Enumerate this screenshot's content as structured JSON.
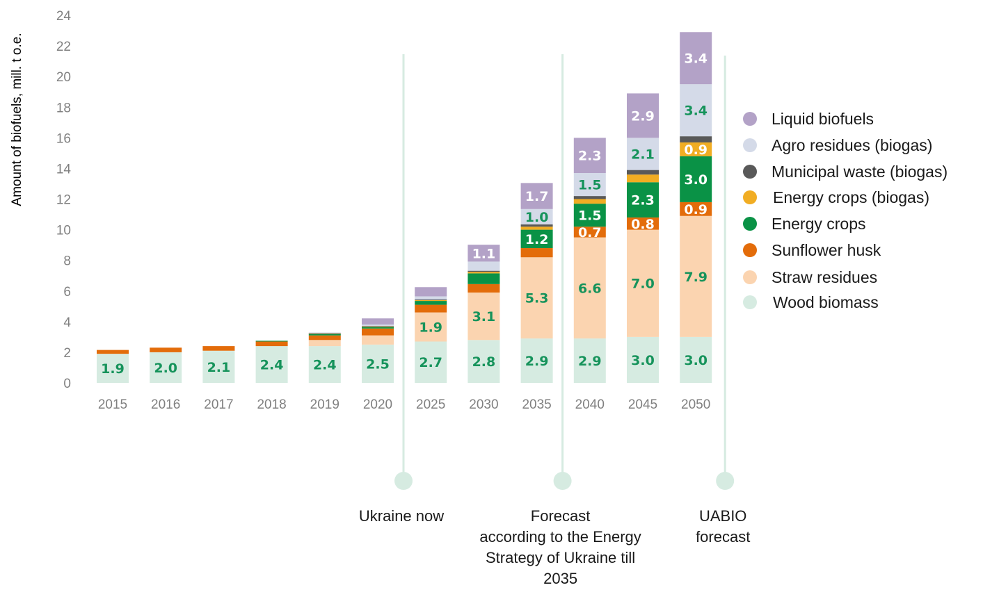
{
  "chart_data": {
    "type": "bar",
    "stacked": true,
    "ylabel": "Amount of biofuels, mill. t o.e.",
    "ylim": [
      0,
      24
    ],
    "yticks": [
      0,
      2,
      4,
      6,
      8,
      10,
      12,
      14,
      16,
      18,
      20,
      22,
      24
    ],
    "categories": [
      "2015",
      "2016",
      "2017",
      "2018",
      "2019",
      "2020",
      "2025",
      "2030",
      "2035",
      "2040",
      "2045",
      "2050"
    ],
    "series": [
      {
        "name": "Wood biomass",
        "color": "#d6ebe1",
        "label_color": "#16935b",
        "values": [
          1.9,
          2.0,
          2.1,
          2.4,
          2.4,
          2.5,
          2.7,
          2.8,
          2.9,
          2.9,
          3.0,
          3.0
        ],
        "labels": [
          "1.9",
          "2.0",
          "2.1",
          "2.4",
          "2.4",
          "2.5",
          "2.7",
          "2.8",
          "2.9",
          "2.9",
          "3.0",
          "3.0"
        ]
      },
      {
        "name": "Straw residues",
        "color": "#fbd4b0",
        "label_color": "#16935b",
        "values": [
          0,
          0,
          0,
          0,
          0.4,
          0.6,
          1.9,
          3.1,
          5.3,
          6.6,
          7.0,
          7.9
        ],
        "labels": [
          "",
          "",
          "",
          "",
          "",
          "",
          "1.9",
          "3.1",
          "5.3",
          "6.6",
          "7.0",
          "7.9"
        ]
      },
      {
        "name": "Sunflower husk",
        "color": "#e36c0a",
        "label_color": "#ffffff",
        "values": [
          0.25,
          0.3,
          0.3,
          0.3,
          0.3,
          0.45,
          0.5,
          0.55,
          0.6,
          0.7,
          0.8,
          0.9
        ],
        "labels": [
          "",
          "",
          "",
          "",
          "",
          "",
          "",
          "",
          "",
          "0.7",
          "0.8",
          "0.9"
        ]
      },
      {
        "name": "Energy crops",
        "color": "#0a9246",
        "label_color": "#ffffff",
        "values": [
          0,
          0,
          0,
          0.05,
          0.1,
          0.1,
          0.25,
          0.7,
          1.2,
          1.5,
          2.3,
          3.0
        ],
        "labels": [
          "",
          "",
          "",
          "",
          "",
          "",
          "",
          "",
          "1.2",
          "1.5",
          "2.3",
          "3.0"
        ]
      },
      {
        "name": "Energy crops (biogas)",
        "color": "#f1ad23",
        "label_color": "#ffffff",
        "values": [
          0,
          0,
          0,
          0,
          0.02,
          0.03,
          0.05,
          0.1,
          0.2,
          0.3,
          0.5,
          0.9
        ],
        "labels": [
          "",
          "",
          "",
          "",
          "",
          "",
          "",
          "",
          "",
          "",
          "",
          "0.9"
        ]
      },
      {
        "name": "Municipal waste (biogas)",
        "color": "#595959",
        "label_color": "#ffffff",
        "values": [
          0,
          0,
          0,
          0,
          0.02,
          0.03,
          0.05,
          0.07,
          0.15,
          0.2,
          0.3,
          0.4
        ],
        "labels": [
          "",
          "",
          "",
          "",
          "",
          "",
          "",
          "",
          "",
          "",
          "",
          ""
        ]
      },
      {
        "name": "Agro residues (biogas)",
        "color": "#d4dae8",
        "label_color": "#16935b",
        "values": [
          0,
          0,
          0,
          0,
          0.05,
          0.1,
          0.2,
          0.6,
          1.0,
          1.5,
          2.1,
          3.4
        ],
        "labels": [
          "",
          "",
          "",
          "",
          "",
          "",
          "",
          "",
          "1.0",
          "1.5",
          "2.1",
          "3.4"
        ]
      },
      {
        "name": "Liquid biofuels",
        "color": "#b3a2c7",
        "label_color": "#ffffff",
        "values": [
          0,
          0,
          0,
          0,
          0,
          0.4,
          0.6,
          1.1,
          1.7,
          2.3,
          2.9,
          3.4
        ],
        "labels": [
          "",
          "",
          "",
          "",
          "",
          "",
          "",
          "1.1",
          "1.7",
          "2.3",
          "2.9",
          "3.4"
        ]
      }
    ],
    "legend": {
      "placement": "right",
      "order": [
        "Liquid biofuels",
        "Agro residues (biogas)",
        "Municipal waste (biogas)",
        "Energy crops (biogas)",
        "Energy crops",
        "Sunflower husk",
        "Straw residues",
        "Wood biomass"
      ]
    },
    "annotations": [
      {
        "after_category": "2020",
        "lines": [
          "Ukraine now"
        ]
      },
      {
        "after_category": "2035",
        "lines": [
          "Forecast",
          "according to the Energy",
          "Strategy of Ukraine till",
          "2035"
        ]
      },
      {
        "after_category": "2050",
        "lines": [
          "UABIO",
          "forecast"
        ]
      }
    ],
    "marker_color": "#d6ebe1",
    "grid": false
  }
}
